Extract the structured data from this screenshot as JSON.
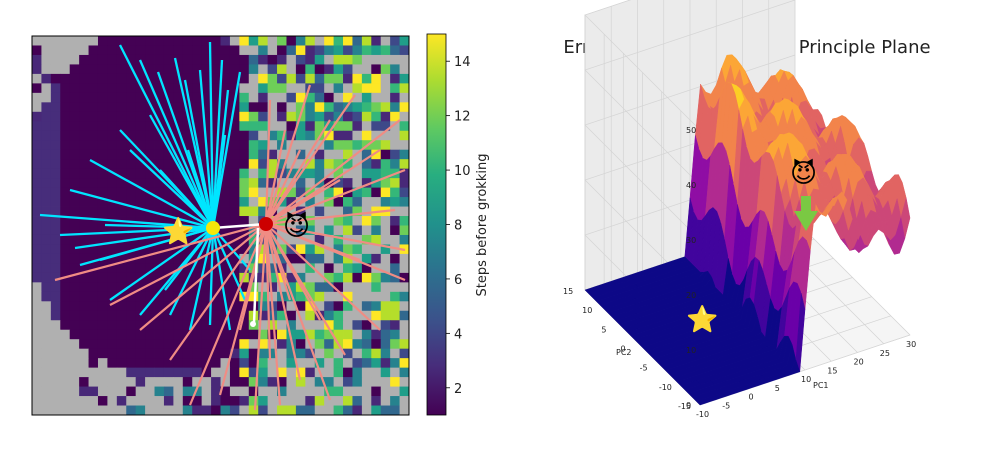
{
  "chart_data": [
    {
      "type": "heatmap",
      "title": "",
      "description_series": [
        {
          "name": "cyan trajectories (non-grokking region)",
          "color": "#00e5ff"
        },
        {
          "name": "pink trajectories (grokking region)",
          "color": "#f08c84"
        },
        {
          "name": "white path",
          "color": "#ffffff"
        }
      ],
      "markers": [
        {
          "name": "star",
          "glyph": "⭐"
        },
        {
          "name": "devil",
          "glyph": "😈"
        },
        {
          "name": "yellow-point",
          "color": "#f5e60a"
        },
        {
          "name": "red-point",
          "color": "#cc0000"
        }
      ],
      "colorbar": {
        "label": "Steps before grokking",
        "ticks": [
          2,
          4,
          6,
          8,
          10,
          12,
          14
        ],
        "range": [
          1,
          15
        ],
        "colormap": "viridis"
      },
      "masked_color": "#b0b0b0"
    },
    {
      "type": "surface3d",
      "title": "Error Value Landscape on Principle Plane",
      "xlabel": "PC1",
      "ylabel": "PC2",
      "zlabel": "",
      "x_ticks": [
        -10,
        -5,
        0,
        5,
        10,
        15,
        20,
        25,
        30
      ],
      "y_ticks": [
        -15,
        -10,
        -5,
        0,
        5,
        10,
        15
      ],
      "z_ticks": [
        0,
        10,
        20,
        30,
        40,
        50
      ],
      "xlim": [
        -10,
        30
      ],
      "ylim": [
        -15,
        15
      ],
      "zlim": [
        0,
        50
      ],
      "plateau_low": 0,
      "ridge_x": 10,
      "ridge_height": 30,
      "arrow_color": "#7ac943",
      "markers": [
        {
          "name": "star",
          "glyph": "⭐"
        },
        {
          "name": "devil",
          "glyph": "😈"
        }
      ]
    }
  ]
}
